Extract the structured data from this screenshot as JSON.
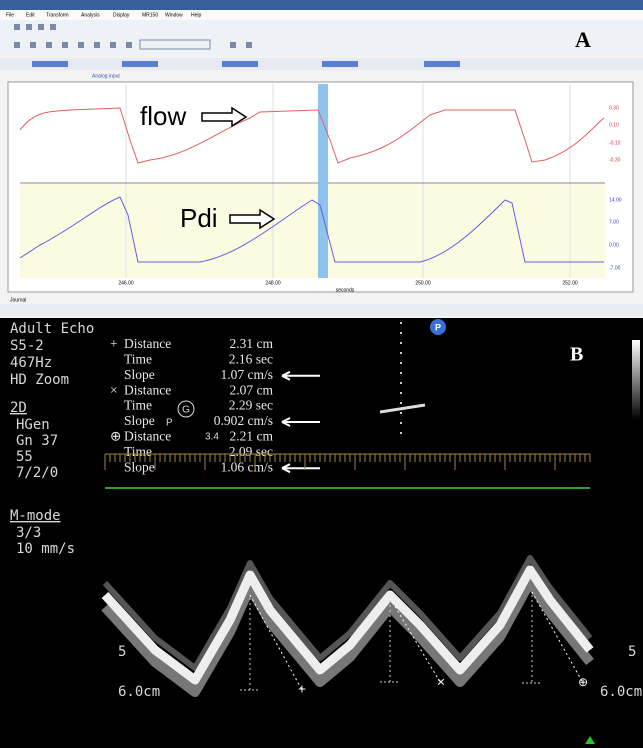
{
  "panel_a": {
    "label": "A",
    "menu": [
      "File",
      "Edit",
      "Transform",
      "Analysis",
      "Display",
      "MR150",
      "Window",
      "Help"
    ],
    "tab": "Analog input",
    "annotations": {
      "flow": "flow",
      "pdi": "Pdi"
    },
    "flow_scale": [
      "0.30",
      "0.10",
      "-0.10",
      "-0.30"
    ],
    "pdi_scale": [
      "14.00",
      "7.00",
      "0.00",
      "-7.00"
    ],
    "x_ticks": [
      "246.00",
      "248.00",
      "250.00",
      "252.00"
    ],
    "x_axis_label": "seconds",
    "journal": "Journal"
  },
  "panel_b": {
    "label": "B",
    "settings": [
      "Adult Echo",
      "S5-2",
      "467Hz",
      "HD Zoom"
    ],
    "mode_2d": {
      "title": "2D",
      "items": [
        "HGen",
        "Gn 37",
        "55",
        "7/2/0"
      ]
    },
    "mode_m": {
      "title": "M-mode",
      "items": [
        "3/3",
        "10 mm/s"
      ]
    },
    "measurements": [
      {
        "marker": "+",
        "rows": [
          [
            "Distance",
            "2.31 cm"
          ],
          [
            "Time",
            "2.16 sec"
          ],
          [
            "Slope",
            "1.07 cm/s"
          ]
        ]
      },
      {
        "marker": "×",
        "rows": [
          [
            "Distance",
            "2.07 cm"
          ],
          [
            "Time",
            "2.29 sec"
          ],
          [
            "Slope",
            "0.902 cm/s"
          ]
        ]
      },
      {
        "marker": "⊕",
        "rows": [
          [
            "Distance",
            "2.21 cm"
          ],
          [
            "Time",
            "2.09 sec"
          ],
          [
            "Slope",
            "1.06 cm/s"
          ]
        ]
      }
    ],
    "overlay": {
      "g": "G",
      "p": "P",
      "value": "3.4",
      "probe": "P"
    },
    "depth_tick": "5",
    "depth": "6.0cm"
  }
}
